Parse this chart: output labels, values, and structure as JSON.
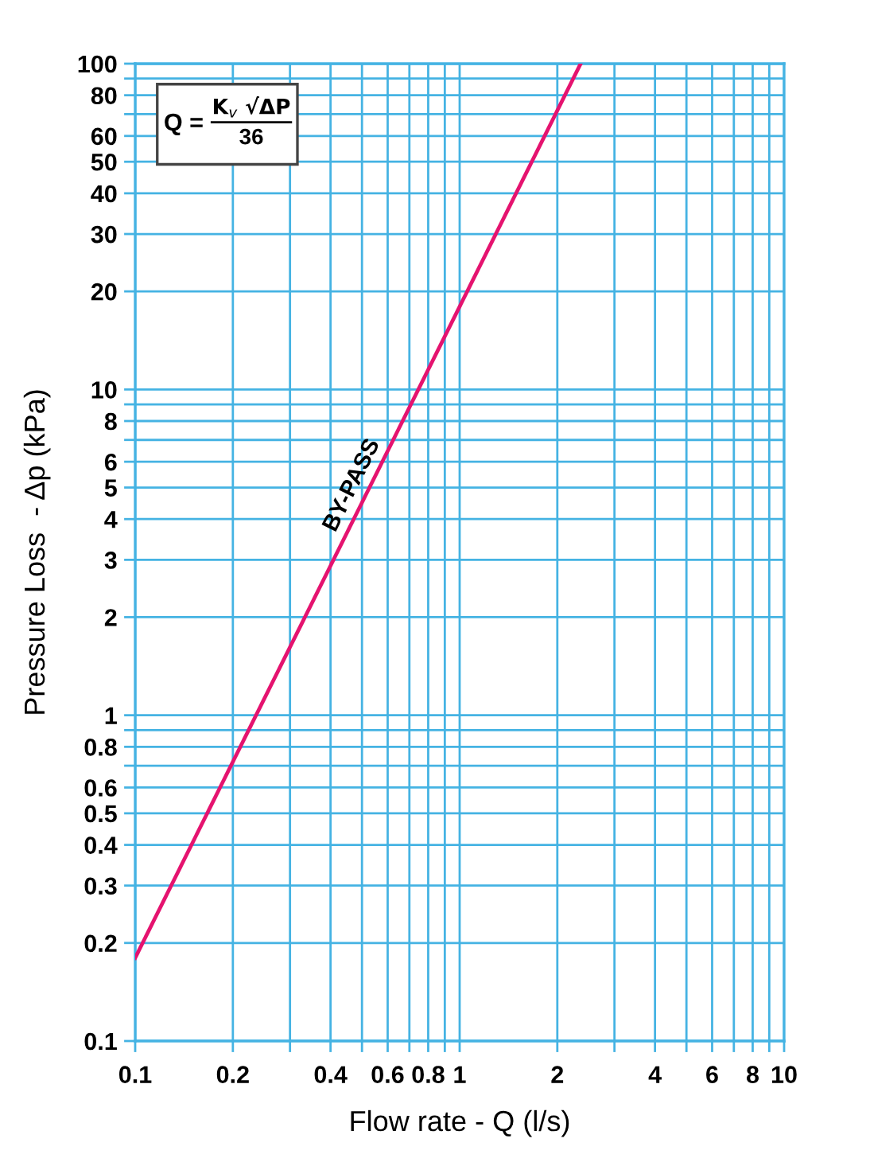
{
  "chart_data": {
    "type": "line",
    "xlabel": "Flow rate - Q (l/s)",
    "ylabel": "Pressure Loss  - Δp (kPa)",
    "series": [
      {
        "name": "BY-PASS",
        "color": "#e5136f",
        "x": [
          0.1,
          2.36
        ],
        "values": [
          0.18,
          100
        ]
      }
    ],
    "log": "xy",
    "xlim": [
      0.1,
      10
    ],
    "ylim": [
      0.1,
      100
    ],
    "xticks": [
      0.1,
      0.2,
      {
        "value": 0.3,
        "label": null
      },
      0.4,
      {
        "value": 0.5,
        "label": null
      },
      0.6,
      {
        "value": 0.7,
        "label": null
      },
      0.8,
      {
        "value": 0.9,
        "label": null
      },
      1,
      2,
      {
        "value": 3,
        "label": null
      },
      4,
      {
        "value": 5,
        "label": null
      },
      6,
      {
        "value": 7,
        "label": null
      },
      8,
      {
        "value": 9,
        "label": null
      },
      10
    ],
    "yticks": [
      0.1,
      0.2,
      0.3,
      0.4,
      0.5,
      0.6,
      {
        "value": 0.7,
        "label": null
      },
      0.8,
      {
        "value": 0.9,
        "label": null
      },
      1,
      2,
      3,
      4,
      5,
      6,
      {
        "value": 7,
        "label": null
      },
      8,
      {
        "value": 9,
        "label": null
      },
      10,
      20,
      30,
      40,
      50,
      60,
      {
        "value": 70,
        "label": null
      },
      80,
      {
        "value": 90,
        "label": null
      },
      100
    ],
    "grid": true,
    "marker": "none",
    "line_style": "solid",
    "annotations": [
      "Q =",
      "K$_{v}$ √ΔP",
      "36"
    ]
  }
}
